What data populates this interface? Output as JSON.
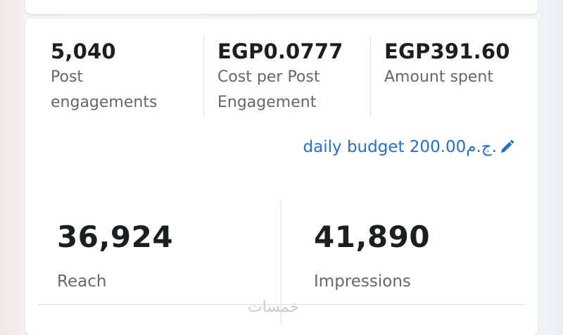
{
  "summary": {
    "metrics": [
      {
        "value": "5,040",
        "label_line1": "Post",
        "label_line2": "engagements"
      },
      {
        "value": "EGP0.0777",
        "label_line1": "Cost per Post",
        "label_line2": "Engagement"
      },
      {
        "value": "EGP391.60",
        "label_line1": "Amount spent",
        "label_line2": ""
      }
    ],
    "budget_link": "daily budget 200.00ج.م."
  },
  "totals": {
    "reach": {
      "value": "36,924",
      "label": "Reach"
    },
    "impressions": {
      "value": "41,890",
      "label": "Impressions"
    }
  },
  "watermark": "خمسات",
  "colors": {
    "link": "#216fdb",
    "text": "#1c1e21",
    "muted": "#65676b",
    "divider": "#dadde1"
  },
  "icons": {
    "edit": "pencil-icon"
  }
}
